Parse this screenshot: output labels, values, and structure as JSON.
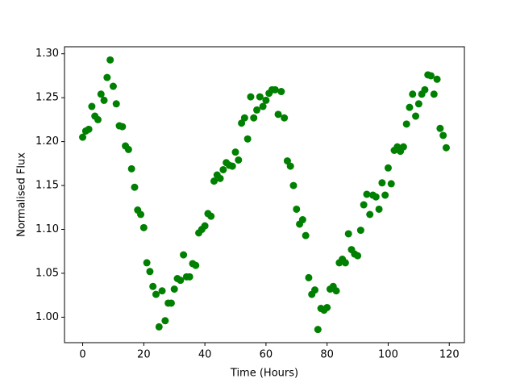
{
  "chart_data": {
    "type": "scatter",
    "x_label": "Time (Hours)",
    "y_label": "Normalised Flux",
    "color": "#008000",
    "x": [
      0,
      1,
      2,
      3,
      4,
      5,
      6,
      7,
      8,
      9,
      10,
      11,
      12,
      13,
      14,
      15,
      16,
      17,
      18,
      19,
      20,
      21,
      22,
      23,
      24,
      25,
      26,
      27,
      28,
      29,
      30,
      31,
      32,
      33,
      34,
      35,
      36,
      37,
      38,
      39,
      40,
      41,
      42,
      43,
      44,
      45,
      46,
      47,
      48,
      49,
      50,
      51,
      52,
      53,
      54,
      55,
      56,
      57,
      58,
      59,
      60,
      61,
      62,
      63,
      64,
      65,
      66,
      67,
      68,
      69,
      70,
      71,
      72,
      73,
      74,
      75,
      76,
      77,
      78,
      79,
      80,
      81,
      82,
      83,
      84,
      85,
      86,
      87,
      88,
      89,
      90,
      91,
      92,
      93,
      94,
      95,
      96,
      97,
      98,
      99,
      100,
      101,
      102,
      103,
      104,
      105,
      106,
      107,
      108,
      109,
      110,
      111,
      112,
      113,
      114,
      115,
      116,
      117,
      118,
      119
    ],
    "values": [
      1.205,
      1.212,
      1.214,
      1.24,
      1.229,
      1.225,
      1.254,
      1.247,
      1.273,
      1.293,
      1.263,
      1.243,
      1.218,
      1.217,
      1.195,
      1.191,
      1.169,
      1.148,
      1.122,
      1.117,
      1.102,
      1.062,
      1.052,
      1.035,
      1.026,
      0.989,
      1.03,
      0.996,
      1.016,
      1.016,
      1.032,
      1.044,
      1.042,
      1.071,
      1.046,
      1.046,
      1.061,
      1.059,
      1.096,
      1.1,
      1.104,
      1.118,
      1.115,
      1.155,
      1.162,
      1.158,
      1.168,
      1.176,
      1.173,
      1.172,
      1.188,
      1.179,
      1.221,
      1.227,
      1.203,
      1.251,
      1.227,
      1.236,
      1.251,
      1.24,
      1.247,
      1.255,
      1.259,
      1.259,
      1.231,
      1.257,
      1.227,
      1.178,
      1.172,
      1.15,
      1.123,
      1.106,
      1.111,
      1.093,
      1.045,
      1.026,
      1.031,
      0.986,
      1.01,
      1.008,
      1.011,
      1.032,
      1.035,
      1.03,
      1.062,
      1.066,
      1.062,
      1.095,
      1.077,
      1.072,
      1.07,
      1.099,
      1.128,
      1.14,
      1.117,
      1.139,
      1.137,
      1.123,
      1.153,
      1.139,
      1.17,
      1.152,
      1.19,
      1.194,
      1.189,
      1.194,
      1.22,
      1.239,
      1.254,
      1.229,
      1.243,
      1.254,
      1.259,
      1.276,
      1.275,
      1.254,
      1.271,
      1.215,
      1.207,
      1.193
    ],
    "xlim": [
      -5.95,
      124.95
    ],
    "xticks": [
      0,
      20,
      40,
      60,
      80,
      100,
      120
    ],
    "ylim": [
      0.971,
      1.308
    ],
    "yticks": [
      {
        "value": 1.0,
        "label": "1.00"
      },
      {
        "value": 1.05,
        "label": "1.05"
      },
      {
        "value": 1.1,
        "label": "1.10"
      },
      {
        "value": 1.15,
        "label": "1.15"
      },
      {
        "value": 1.2,
        "label": "1.20"
      },
      {
        "value": 1.25,
        "label": "1.25"
      },
      {
        "value": 1.3,
        "label": "1.30"
      }
    ]
  }
}
